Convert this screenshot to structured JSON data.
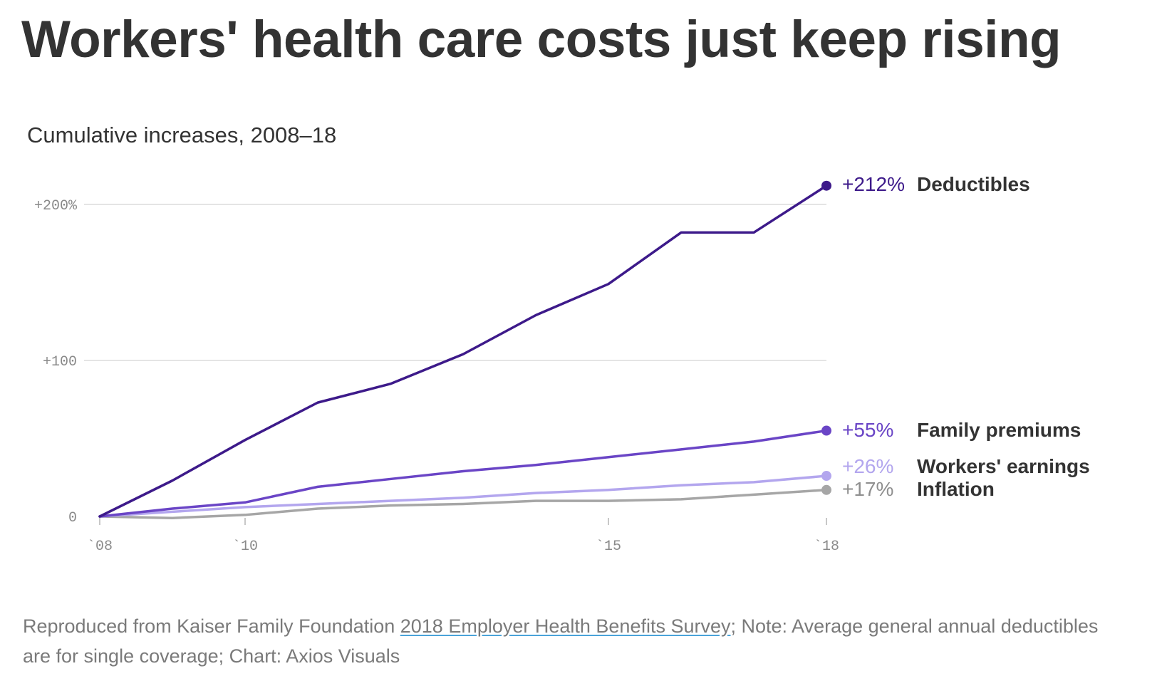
{
  "title": "Workers' health care costs just keep rising",
  "subtitle": "Cumulative increases, 2008–18",
  "footer": {
    "prefix": "Reproduced from Kaiser Family Foundation ",
    "link_text": "2018 Employer Health Benefits Survey",
    "suffix": "; Note: Average general annual deductibles are for single coverage; Chart: Axios Visuals"
  },
  "chart_data": {
    "type": "line",
    "title": "Workers' health care costs just keep rising",
    "subtitle": "Cumulative increases, 2008–18",
    "xlabel": "",
    "ylabel": "",
    "x": [
      2008,
      2009,
      2010,
      2011,
      2012,
      2013,
      2014,
      2015,
      2016,
      2017,
      2018
    ],
    "xlim": [
      2008,
      2018
    ],
    "ylim": [
      0,
      200
    ],
    "x_ticks": [
      {
        "value": 2008,
        "label": "`08"
      },
      {
        "value": 2010,
        "label": "`10"
      },
      {
        "value": 2015,
        "label": "`15"
      },
      {
        "value": 2018,
        "label": "`18"
      }
    ],
    "y_ticks": [
      {
        "value": 0,
        "label": "0"
      },
      {
        "value": 100,
        "label": "+100"
      },
      {
        "value": 200,
        "label": "+200%"
      }
    ],
    "grid": true,
    "series": [
      {
        "name": "Deductibles",
        "end_label": "+212%",
        "color": "#3d1a8a",
        "values": [
          0,
          23,
          49,
          73,
          85,
          104,
          129,
          149,
          182,
          182,
          212
        ]
      },
      {
        "name": "Family premiums",
        "end_label": "+55%",
        "color": "#6a45c6",
        "values": [
          0,
          5,
          9,
          19,
          24,
          29,
          33,
          38,
          43,
          48,
          55
        ]
      },
      {
        "name": "Workers' earnings",
        "end_label": "+26%",
        "color": "#b3a6ee",
        "values": [
          0,
          3,
          6,
          8,
          10,
          12,
          15,
          17,
          20,
          22,
          26
        ]
      },
      {
        "name": "Inflation",
        "end_label": "+17%",
        "color": "#a6a6a6",
        "values": [
          0,
          -1,
          1,
          5,
          7,
          8,
          10,
          10,
          11,
          14,
          17
        ]
      }
    ]
  }
}
